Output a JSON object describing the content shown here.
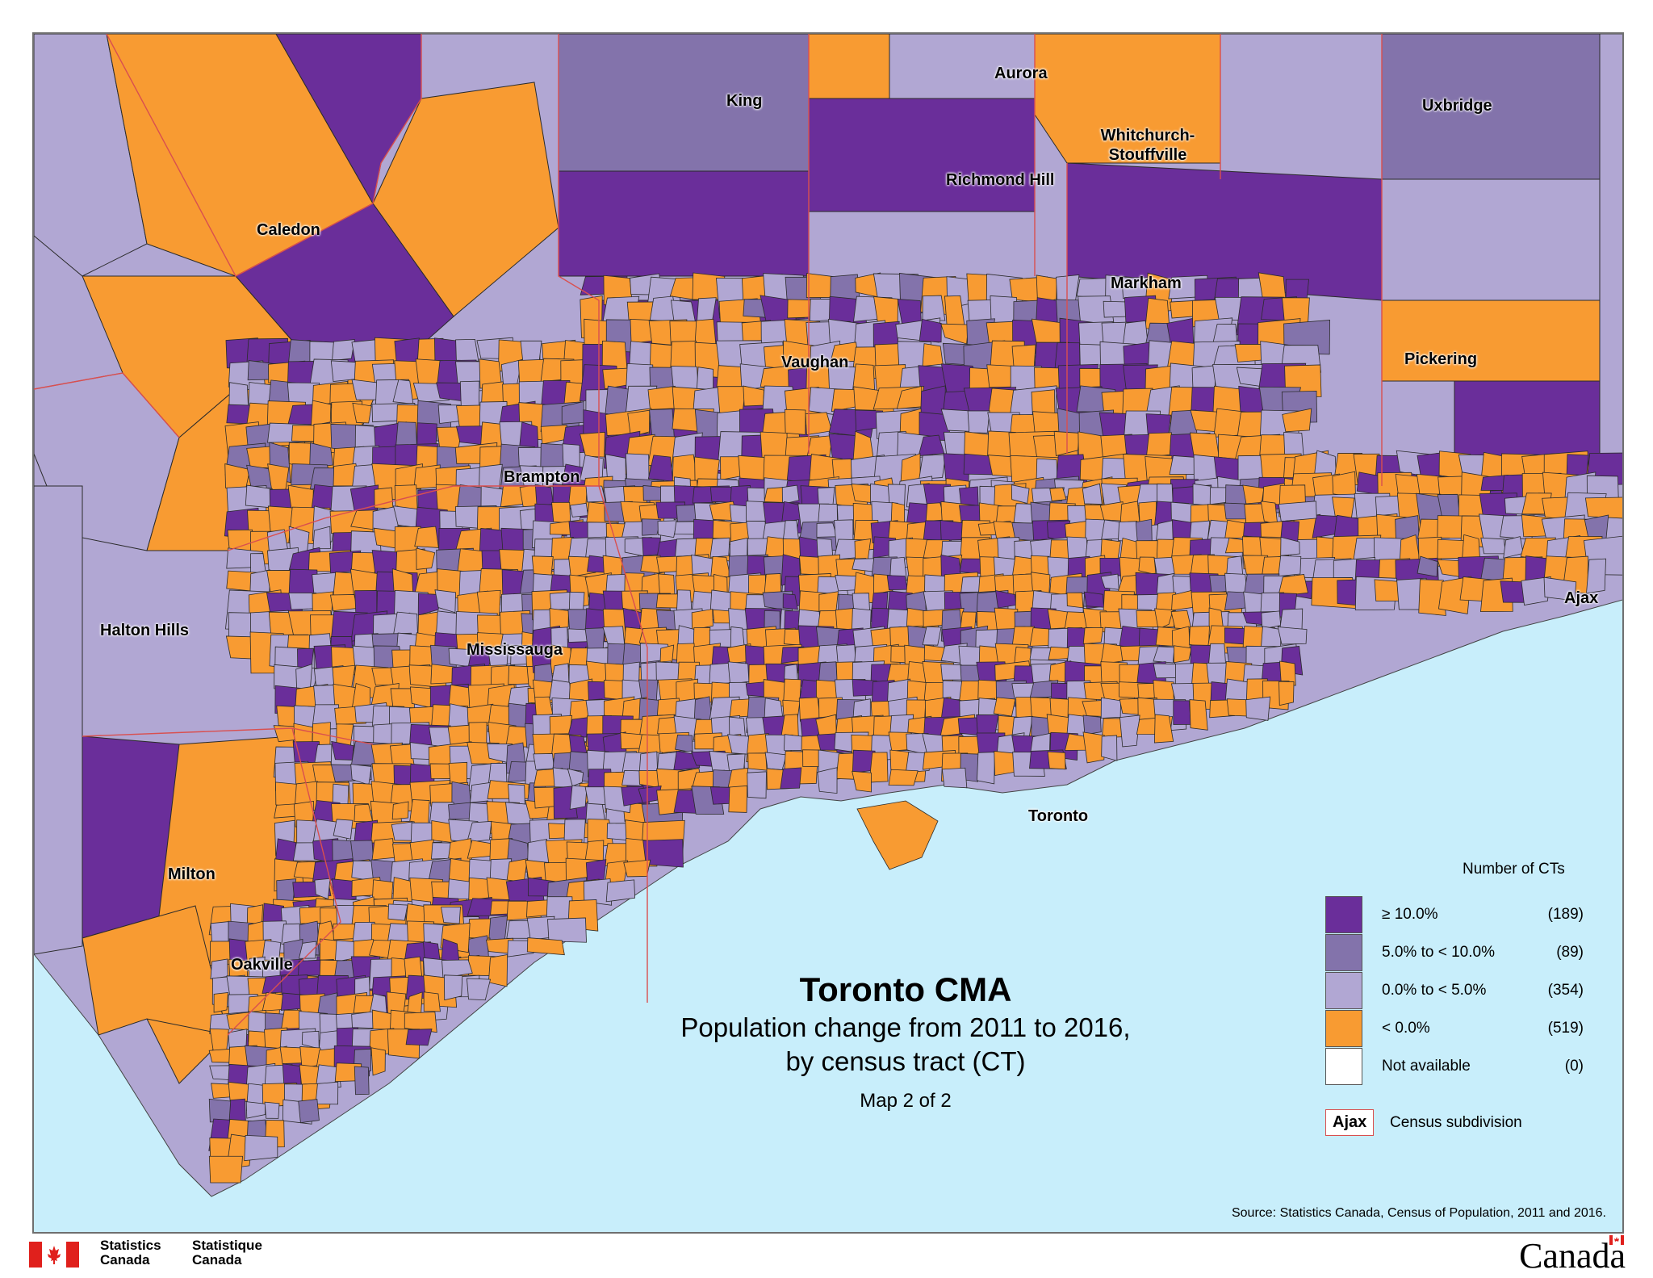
{
  "map": {
    "title": "Toronto CMA",
    "subtitle_line1": "Population change from 2011 to 2016,",
    "subtitle_line2": "by census tract (CT)",
    "map_number": "Map 2 of 2",
    "colors": {
      "water": "#c8eefb",
      "class_high": "#6a2e9a",
      "class_mid": "#8373ab",
      "class_low": "#b1a7d3",
      "class_neg": "#f89b32",
      "not_available": "#ffffff",
      "csd_boundary": "#d94f4f"
    },
    "places": [
      {
        "id": "caledon",
        "name": "Caledon"
      },
      {
        "id": "king",
        "name": "King"
      },
      {
        "id": "aurora",
        "name": "Aurora"
      },
      {
        "id": "whitchurch",
        "name": "Whitchurch-\nStouffville"
      },
      {
        "id": "uxbridge",
        "name": "Uxbridge"
      },
      {
        "id": "richmond-hill",
        "name": "Richmond Hill"
      },
      {
        "id": "markham",
        "name": "Markham"
      },
      {
        "id": "vaughan",
        "name": "Vaughan"
      },
      {
        "id": "pickering",
        "name": "Pickering"
      },
      {
        "id": "brampton",
        "name": "Brampton"
      },
      {
        "id": "halton-hills",
        "name": "Halton Hills"
      },
      {
        "id": "mississauga",
        "name": "Mississauga"
      },
      {
        "id": "ajax",
        "name": "Ajax"
      },
      {
        "id": "toronto",
        "name": "Toronto"
      },
      {
        "id": "milton",
        "name": "Milton"
      },
      {
        "id": "oakville",
        "name": "Oakville"
      }
    ]
  },
  "legend": {
    "heading": "Number of CTs",
    "classes": [
      {
        "label": "≥ 10.0%",
        "count": "(189)",
        "color": "#6a2e9a"
      },
      {
        "label": "5.0% to < 10.0%",
        "count": "(89)",
        "color": "#8373ab"
      },
      {
        "label": "0.0% to < 5.0%",
        "count": "(354)",
        "color": "#b1a7d3"
      },
      {
        "label": "< 0.0%",
        "count": "(519)",
        "color": "#f89b32"
      },
      {
        "label": "Not available",
        "count": "(0)",
        "color": "#ffffff"
      }
    ],
    "csd_sample": "Ajax",
    "csd_label": "Census subdivision"
  },
  "source": "Source: Statistics Canada, Census of Population, 2011 and 2016.",
  "footer": {
    "agency_en_line1": "Statistics",
    "agency_en_line2": "Canada",
    "agency_fr_line1": "Statistique",
    "agency_fr_line2": "Canada",
    "wordmark": "Canada"
  }
}
